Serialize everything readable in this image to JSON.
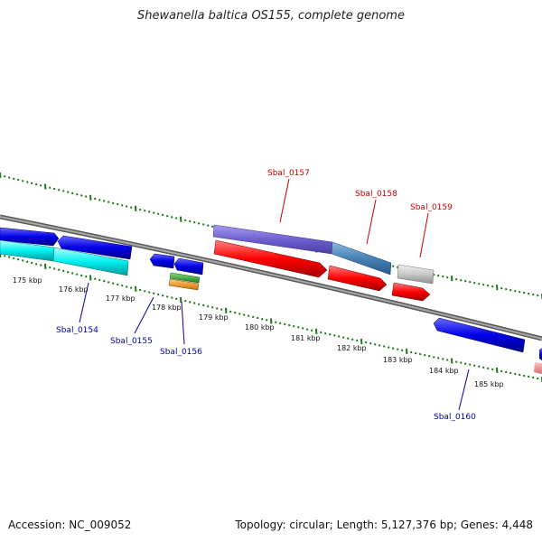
{
  "title": "Shewanella baltica OS155, complete genome",
  "footer": {
    "accession": "Accession: NC_009052",
    "summary": "Topology: circular; Length: 5,127,376 bp; Genes: 4,448"
  },
  "colors": {
    "backbone": "#8c8c8c",
    "tick": "#1a7a1a",
    "label_red": "#cc0000",
    "label_blue": "#0000aa"
  },
  "scale_labels": [
    "175 kbp",
    "176 kbp",
    "177 kbp",
    "178 kbp",
    "179 kbp",
    "180 kbp",
    "181 kbp",
    "182 kbp",
    "183 kbp",
    "184 kbp",
    "185 kbp"
  ],
  "gene_labels": [
    {
      "text": "Sbal_0154",
      "color": "blue"
    },
    {
      "text": "Sbal_0155",
      "color": "blue"
    },
    {
      "text": "Sbal_0156",
      "color": "blue"
    },
    {
      "text": "Sbal_0157",
      "color": "red"
    },
    {
      "text": "Sbal_0158",
      "color": "red"
    },
    {
      "text": "Sbal_0159",
      "color": "red"
    },
    {
      "text": "Sbal_0160",
      "color": "blue"
    }
  ]
}
